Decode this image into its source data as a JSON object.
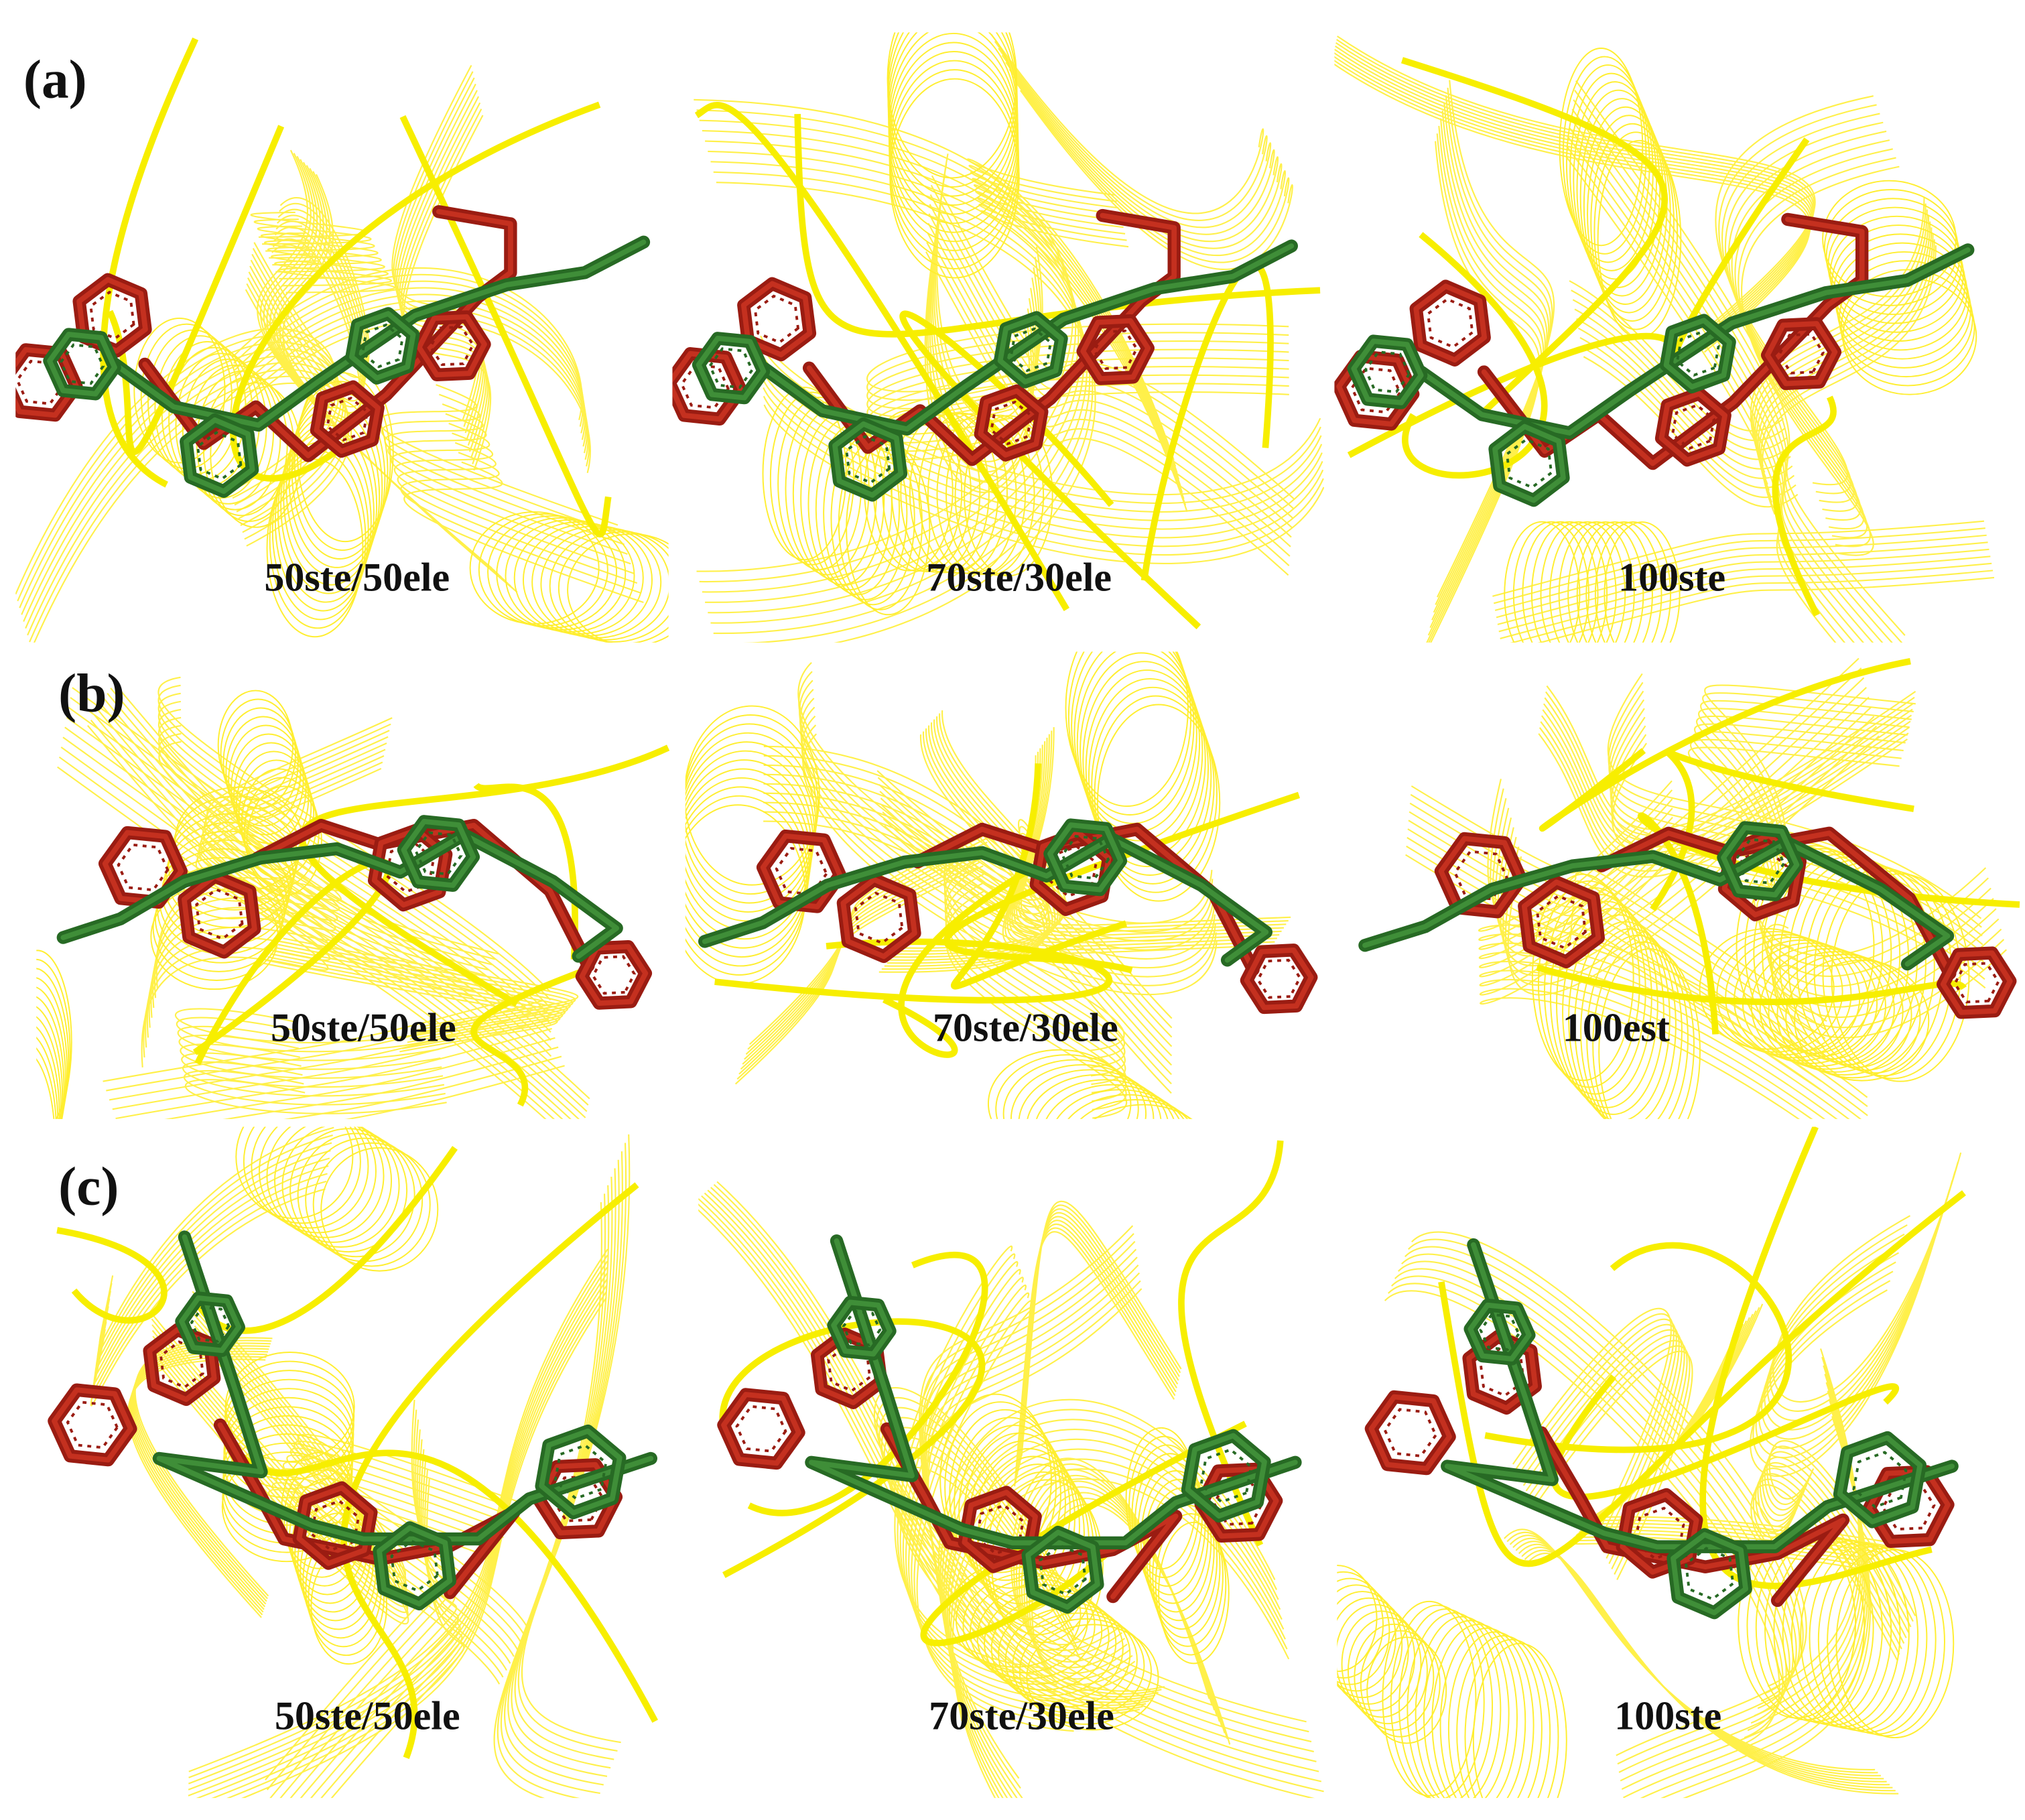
{
  "panels": [
    {
      "label": "(a)",
      "captions": [
        "50ste/50ele",
        "70ste/30ele",
        "100ste"
      ]
    },
    {
      "label": "(b)",
      "captions": [
        "50ste/50ele",
        "70ste/30ele",
        "100est"
      ]
    },
    {
      "label": "(c)",
      "captions": [
        "50ste/50ele",
        "70ste/30ele",
        "100ste"
      ]
    }
  ]
}
